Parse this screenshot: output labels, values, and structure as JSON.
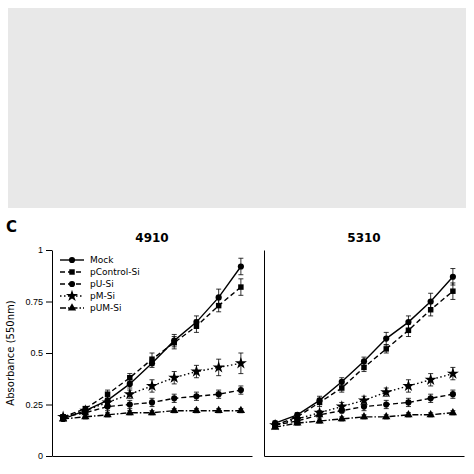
{
  "chart_data": [
    {
      "type": "line",
      "title": "4910",
      "y_label": "Absorbance (550nm)",
      "annotations": [
        "C"
      ],
      "x": [
        1,
        2,
        3,
        4,
        5,
        6,
        7,
        8,
        9
      ],
      "xlim": [
        0.5,
        9.5
      ],
      "ylim": [
        0,
        1
      ],
      "yticks": [
        0,
        0.25,
        0.5,
        0.75,
        1
      ],
      "tick_labels": "y",
      "legend": "upper left",
      "series": [
        {
          "name": "Mock",
          "color": "black",
          "line_style": "solid",
          "marker": "circle",
          "values": [
            0.18,
            0.22,
            0.27,
            0.35,
            0.45,
            0.56,
            0.65,
            0.77,
            0.92
          ],
          "errors": [
            0.01,
            0.01,
            0.02,
            0.02,
            0.02,
            0.03,
            0.03,
            0.04,
            0.04
          ]
        },
        {
          "name": "pControl-Si",
          "color": "black",
          "line_style": "dashed",
          "marker": "square",
          "values": [
            0.19,
            0.23,
            0.3,
            0.38,
            0.47,
            0.55,
            0.63,
            0.73,
            0.82
          ],
          "errors": [
            0.01,
            0.01,
            0.02,
            0.02,
            0.03,
            0.03,
            0.03,
            0.03,
            0.04
          ]
        },
        {
          "name": "pU-Si",
          "color": "black",
          "line_style": "dashed",
          "marker": "circle",
          "values": [
            0.19,
            0.21,
            0.24,
            0.25,
            0.26,
            0.28,
            0.29,
            0.3,
            0.32
          ],
          "errors": [
            0.01,
            0.01,
            0.02,
            0.02,
            0.02,
            0.02,
            0.02,
            0.02,
            0.02
          ]
        },
        {
          "name": "pM-Si",
          "color": "black",
          "line_style": "dotted",
          "marker": "star",
          "values": [
            0.19,
            0.22,
            0.26,
            0.3,
            0.34,
            0.38,
            0.41,
            0.43,
            0.45
          ],
          "errors": [
            0.01,
            0.01,
            0.02,
            0.02,
            0.03,
            0.03,
            0.03,
            0.04,
            0.05
          ]
        },
        {
          "name": "pUM-Si",
          "color": "black",
          "line_style": "dashdot",
          "marker": "triangle",
          "values": [
            0.18,
            0.19,
            0.2,
            0.21,
            0.21,
            0.22,
            0.22,
            0.22,
            0.22
          ],
          "errors": [
            0.01,
            0.01,
            0.01,
            0.01,
            0.01,
            0.01,
            0.01,
            0.01,
            0.01
          ]
        }
      ]
    },
    {
      "type": "line",
      "title": "5310",
      "x": [
        1,
        2,
        3,
        4,
        5,
        6,
        7,
        8,
        9
      ],
      "xlim": [
        0.5,
        9.5
      ],
      "ylim": [
        0,
        1
      ],
      "tick_labels": false,
      "series": [
        {
          "color": "black",
          "line_style": "solid",
          "marker": "circle",
          "values": [
            0.16,
            0.2,
            0.27,
            0.36,
            0.46,
            0.57,
            0.65,
            0.75,
            0.87
          ],
          "errors": [
            0.01,
            0.01,
            0.02,
            0.02,
            0.02,
            0.03,
            0.03,
            0.04,
            0.04
          ]
        },
        {
          "color": "black",
          "line_style": "dashed",
          "marker": "square",
          "values": [
            0.15,
            0.19,
            0.26,
            0.33,
            0.43,
            0.52,
            0.61,
            0.71,
            0.8
          ],
          "errors": [
            0.01,
            0.01,
            0.02,
            0.02,
            0.02,
            0.02,
            0.03,
            0.03,
            0.04
          ]
        },
        {
          "color": "black",
          "line_style": "dashed",
          "marker": "circle",
          "values": [
            0.15,
            0.17,
            0.2,
            0.22,
            0.24,
            0.25,
            0.26,
            0.28,
            0.3
          ],
          "errors": [
            0.01,
            0.01,
            0.01,
            0.01,
            0.02,
            0.02,
            0.02,
            0.02,
            0.02
          ]
        },
        {
          "color": "black",
          "line_style": "dotted",
          "marker": "star",
          "values": [
            0.15,
            0.18,
            0.21,
            0.24,
            0.27,
            0.31,
            0.34,
            0.37,
            0.4
          ],
          "errors": [
            0.01,
            0.01,
            0.01,
            0.02,
            0.02,
            0.02,
            0.03,
            0.03,
            0.03
          ]
        },
        {
          "color": "black",
          "line_style": "dashdot",
          "marker": "triangle",
          "values": [
            0.14,
            0.16,
            0.17,
            0.18,
            0.19,
            0.19,
            0.2,
            0.2,
            0.21
          ],
          "errors": [
            0.01,
            0.01,
            0.01,
            0.01,
            0.01,
            0.01,
            0.01,
            0.01,
            0.01
          ]
        }
      ]
    }
  ]
}
